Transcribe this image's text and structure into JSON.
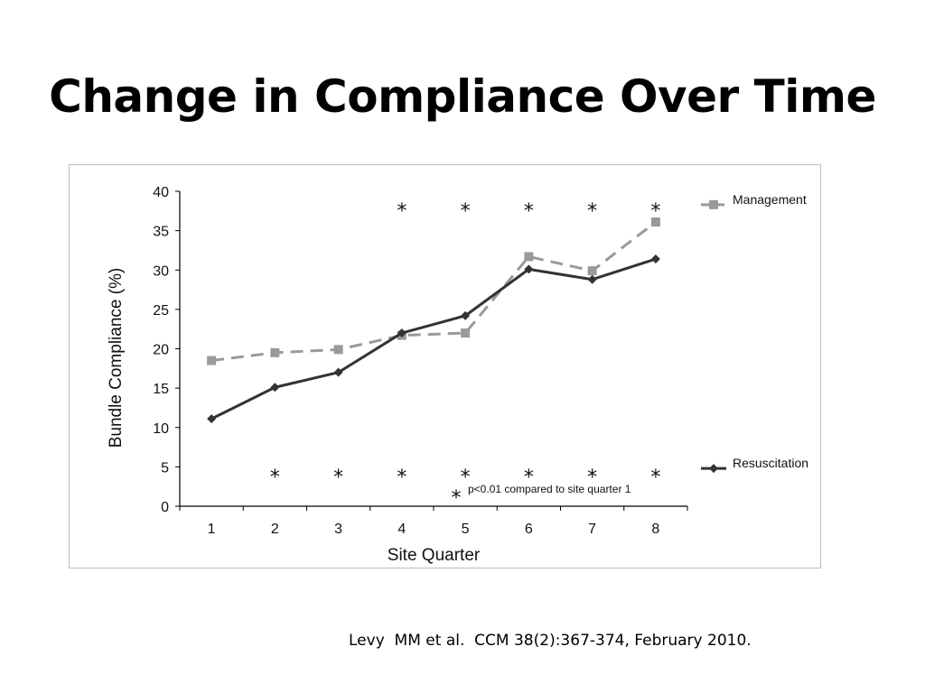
{
  "slide": {
    "title": "Change in Compliance Over Time",
    "citation": "Levy  MM et al.  CCM 38(2):367-374, February 2010."
  },
  "chart_data": {
    "type": "line",
    "title": "",
    "xlabel": "Site Quarter",
    "ylabel": "Bundle Compliance (%)",
    "categories": [
      "1",
      "2",
      "3",
      "4",
      "5",
      "6",
      "7",
      "8"
    ],
    "yticks": [
      "0",
      "5",
      "10",
      "15",
      "20",
      "25",
      "30",
      "35",
      "40"
    ],
    "ylim": [
      0,
      40
    ],
    "series": [
      {
        "name": "Management",
        "values": [
          18.5,
          19.5,
          19.9,
          21.7,
          22.0,
          31.7,
          29.9,
          36.1
        ],
        "style": "dashed",
        "marker": "square",
        "color": "#9a9a9a",
        "significance_marks": [
          "",
          "",
          "",
          "*",
          "*",
          "*",
          "*",
          "*"
        ]
      },
      {
        "name": "Resuscitation",
        "values": [
          11.1,
          15.1,
          17.0,
          22.0,
          24.2,
          30.1,
          28.8,
          31.4
        ],
        "style": "solid",
        "marker": "diamond",
        "color": "#333333",
        "significance_marks": [
          "",
          "*",
          "*",
          "*",
          "*",
          "*",
          "*",
          "*"
        ]
      }
    ],
    "legend_placement": "right",
    "annotation": {
      "symbol": "*",
      "text": "p<0.01 compared to site quarter 1"
    },
    "grid": false
  }
}
